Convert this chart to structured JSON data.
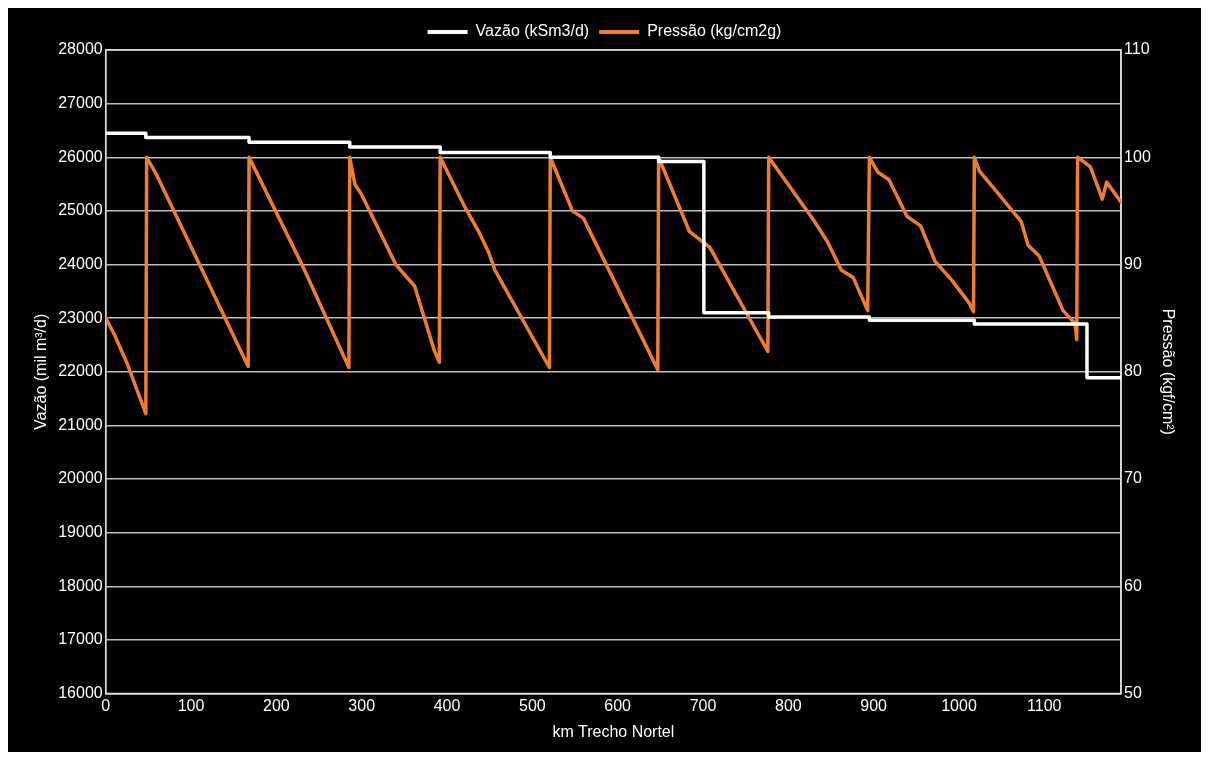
{
  "chart_data": {
    "type": "line",
    "xlabel": "km Trecho Nortel",
    "ylabel": "Vazão (mil m³/d)",
    "y2label": "Pressão (kgf/cm²)",
    "xlim": [
      0,
      1190
    ],
    "xticks": [
      0,
      100,
      200,
      300,
      400,
      500,
      600,
      700,
      800,
      900,
      1000,
      1100
    ],
    "ylim": [
      16000,
      28000
    ],
    "yticks": [
      16000,
      17000,
      18000,
      19000,
      20000,
      21000,
      22000,
      23000,
      24000,
      25000,
      26000,
      27000,
      28000
    ],
    "y2lim": [
      50,
      110
    ],
    "y2ticks": [
      50,
      60,
      70,
      80,
      90,
      100,
      110
    ],
    "grid": "y",
    "legend": "top",
    "marker": "none",
    "series": [
      {
        "name": "Vazão (kSm3/d)",
        "type": "step",
        "color": "#ffffff",
        "x": [
          0,
          47,
          168,
          286,
          392,
          521,
          648,
          701,
          777,
          895,
          1018,
          1150,
          1190
        ],
        "values": [
          26450,
          26370,
          26280,
          26190,
          26090,
          26000,
          25920,
          23100,
          23020,
          22960,
          22890,
          21890,
          21890
        ]
      },
      {
        "name": "Pressão (kg/cm2g)",
        "type": "line",
        "axis": "y2",
        "color": "#ed7d31",
        "x": [
          0,
          10,
          25,
          47,
          48,
          60,
          107,
          167,
          168,
          230,
          285,
          286,
          292,
          300,
          340,
          362,
          385,
          391,
          392,
          420,
          437,
          449,
          456,
          520,
          521,
          547,
          560,
          647,
          648,
          684,
          708,
          776,
          777,
          830,
          846,
          862,
          876,
          893,
          895,
          905,
          918,
          939,
          955,
          972,
          992,
          1012,
          1017,
          1018,
          1024,
          1040,
          1073,
          1081,
          1094,
          1122,
          1136,
          1138,
          1139,
          1146,
          1154,
          1168,
          1173,
          1190
        ],
        "values": [
          85.0,
          83.5,
          80.8,
          76.1,
          100,
          98.3,
          90.5,
          80.5,
          100,
          90.0,
          80.4,
          100,
          97.5,
          96.5,
          90.0,
          88.0,
          82.0,
          80.9,
          100,
          95.5,
          93.1,
          91.1,
          89.5,
          80.4,
          100,
          95.0,
          94.3,
          80.2,
          100,
          93.1,
          91.6,
          81.9,
          100,
          94.1,
          92.1,
          89.5,
          88.8,
          85.7,
          100,
          98.6,
          97.9,
          94.5,
          93.6,
          90.3,
          88.5,
          86.4,
          85.6,
          100,
          98.7,
          97.2,
          94.0,
          91.8,
          90.8,
          85.7,
          84.5,
          83.0,
          100,
          99.6,
          99.1,
          96.1,
          97.7,
          95.8
        ]
      }
    ]
  }
}
